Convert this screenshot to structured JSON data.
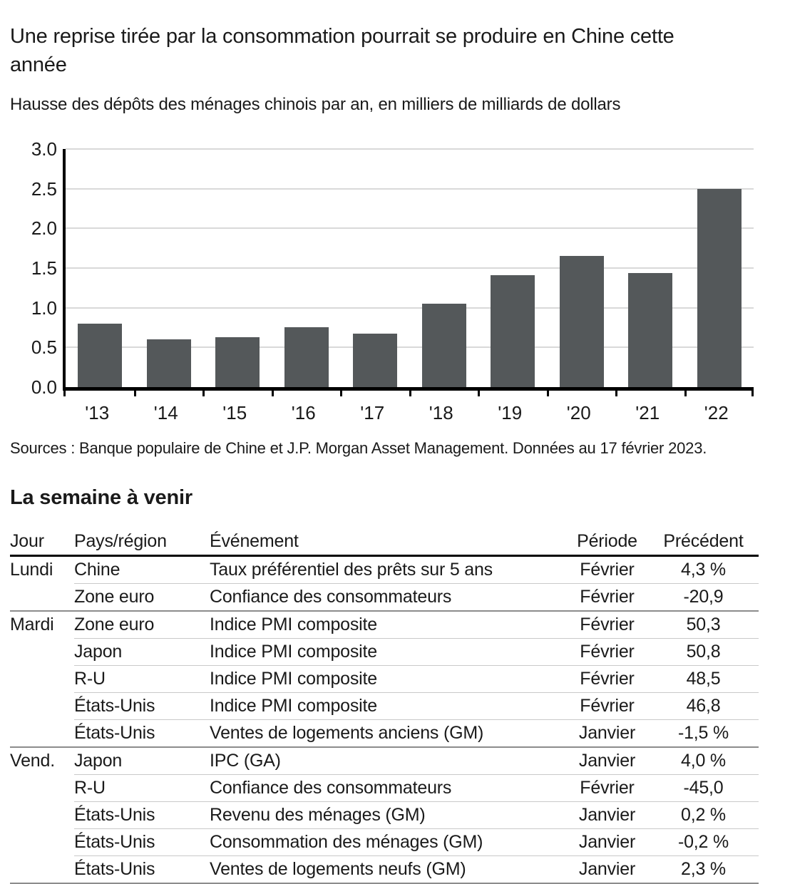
{
  "header": {
    "title": "Une reprise tirée par la consommation pourrait se produire en Chine cette\nannée",
    "subtitle": "Hausse des dépôts des ménages chinois par an, en milliers de milliards de dollars"
  },
  "chart_data": {
    "type": "bar",
    "title": "Une reprise tirée par la consommation pourrait se produire en Chine cette année",
    "subtitle": "Hausse des dépôts des ménages chinois par an, en milliers de milliards de dollars",
    "categories": [
      "'13",
      "'14",
      "'15",
      "'16",
      "'17",
      "'18",
      "'19",
      "'20",
      "'21",
      "'22"
    ],
    "values": [
      0.8,
      0.6,
      0.63,
      0.75,
      0.67,
      1.05,
      1.41,
      1.65,
      1.44,
      2.5
    ],
    "xlabel": "",
    "ylabel": "",
    "ylim": [
      0,
      3.0
    ],
    "yticks": [
      0.0,
      0.5,
      1.0,
      1.5,
      2.0,
      2.5,
      3.0
    ],
    "ytick_labels": [
      "0.0",
      "0.5",
      "1.0",
      "1.5",
      "2.0",
      "2.5",
      "3.0"
    ],
    "grid": true,
    "legend_position": "none",
    "bar_color": "#54585a",
    "grid_color": "#d9d9d9",
    "axis_color": "#000000"
  },
  "source_note": "Sources : Banque populaire de Chine et J.P. Morgan Asset Management. Données au 17 février 2023.",
  "week_ahead": {
    "title": "La semaine à venir",
    "columns": {
      "day": "Jour",
      "region": "Pays/région",
      "event": "Événement",
      "period": "Période",
      "previous": "Précédent"
    },
    "rows": [
      {
        "day": "Lundi",
        "region": "Chine",
        "event": "Taux préférentiel des prêts sur 5 ans",
        "period": "Février",
        "previous": "4,3 %"
      },
      {
        "day": "",
        "region": "Zone euro",
        "event": "Confiance des consommateurs",
        "period": "Février",
        "previous": "-20,9"
      },
      {
        "day": "Mardi",
        "region": "Zone euro",
        "event": "Indice PMI composite",
        "period": "Février",
        "previous": "50,3"
      },
      {
        "day": "",
        "region": "Japon",
        "event": "Indice PMI composite",
        "period": "Février",
        "previous": "50,8"
      },
      {
        "day": "",
        "region": "R-U",
        "event": "Indice PMI composite",
        "period": "Février",
        "previous": "48,5"
      },
      {
        "day": "",
        "region": "États-Unis",
        "event": "Indice PMI composite",
        "period": "Février",
        "previous": "46,8"
      },
      {
        "day": "",
        "region": "États-Unis",
        "event": "Ventes de logements anciens (GM)",
        "period": "Janvier",
        "previous": "-1,5 %"
      },
      {
        "day": "Vend.",
        "region": "Japon",
        "event": "IPC (GA)",
        "period": "Janvier",
        "previous": "4,0 %"
      },
      {
        "day": "",
        "region": "R-U",
        "event": "Confiance des consommateurs",
        "period": "Février",
        "previous": "-45,0"
      },
      {
        "day": "",
        "region": "États-Unis",
        "event": "Revenu des ménages (GM)",
        "period": "Janvier",
        "previous": "0,2 %"
      },
      {
        "day": "",
        "region": "États-Unis",
        "event": "Consommation des ménages (GM)",
        "period": "Janvier",
        "previous": "-0,2 %"
      },
      {
        "day": "",
        "region": "États-Unis",
        "event": "Ventes de logements neufs (GM)",
        "period": "Janvier",
        "previous": "2,3 %"
      }
    ]
  }
}
